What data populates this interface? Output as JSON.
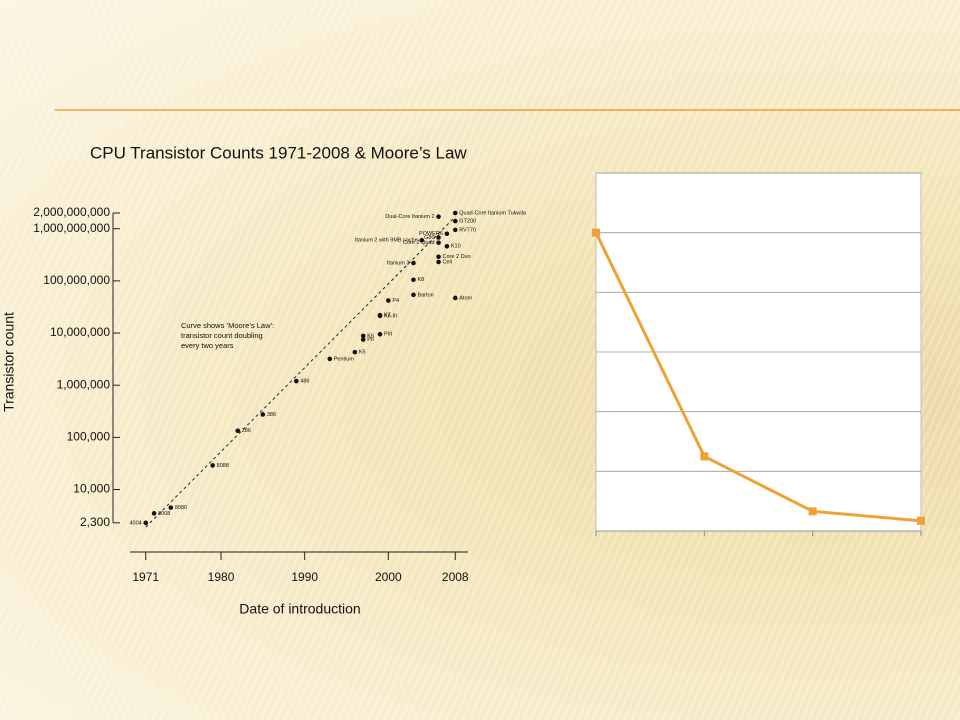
{
  "chart_data": [
    {
      "type": "scatter",
      "title": "CPU Transistor Counts 1971-2008 & Moore’s Law",
      "x_label": "Date of introduction",
      "y_label": "Transistor count",
      "annotation": [
        "Curve shows ‘Moore’s Law’:",
        "transistor count doubling",
        "every two years"
      ],
      "log_y": true,
      "color": "#111111",
      "x": [
        1971,
        1972,
        1974,
        1979,
        1982,
        1985,
        1989,
        1993,
        1996,
        1997,
        1997,
        1999,
        1999,
        1999,
        2000,
        2003,
        2008,
        2003,
        2003,
        2006,
        2006,
        2007,
        2006,
        2004,
        2006,
        2007,
        2008,
        2006,
        2008,
        2008
      ],
      "values": [
        2300,
        3500,
        4500,
        29000,
        134000,
        275000,
        1200000,
        3200000,
        4300000,
        8800000,
        7500000,
        9500000,
        21300000,
        22000000,
        42000000,
        54000000,
        47000000,
        105000000,
        220000000,
        230000000,
        290000000,
        460000000,
        540000000,
        600000000,
        680000000,
        800000000,
        950000000,
        1700000000,
        1400000000,
        2000000000
      ],
      "point_labels": [
        "4004",
        "8008",
        "8080",
        "8088",
        "286",
        "386",
        "486",
        "Pentium",
        "K5",
        "K6",
        "PII",
        "PIII",
        "K6-III",
        "K7",
        "P4",
        "Barton",
        "Atom",
        "K8",
        "Itanium 2",
        "Cell",
        "Core 2 Duo",
        "K10",
        "Core 2 Quad",
        "Itanium 2 with 9MB cache",
        "G80",
        "POWER6",
        "RV770",
        "Dual-Core Itanium 2",
        "GT200",
        "Quad-Core Itanium Tukwila"
      ],
      "trend_line": {
        "x": [
          1971,
          2008
        ],
        "values": [
          1900,
          1700000000
        ]
      },
      "xlim": [
        1969,
        2010
      ],
      "xticks": [
        1971,
        1980,
        1990,
        2000,
        2008
      ],
      "ylim": [
        2000,
        2000000000
      ],
      "yticks": [
        {
          "value": 2300,
          "label": "2,300"
        },
        {
          "value": 10000,
          "label": "10,000"
        },
        {
          "value": 100000,
          "label": "100,000"
        },
        {
          "value": 1000000,
          "label": "1,000,000"
        },
        {
          "value": 10000000,
          "label": "10,000,000"
        },
        {
          "value": 100000000,
          "label": "100,000,000"
        },
        {
          "value": 1000000000,
          "label": "1,000,000,000"
        },
        {
          "value": 2000000000,
          "label": "2,000,000,000"
        }
      ]
    },
    {
      "type": "line",
      "categories": [
        null,
        null,
        null,
        null
      ],
      "values": [
        5,
        1.25,
        0.33,
        0.17
      ],
      "color": "#eea236",
      "ylim": [
        0,
        6
      ],
      "yticks": [
        0,
        1,
        2,
        3,
        4,
        5,
        6
      ],
      "grid": true
    }
  ]
}
